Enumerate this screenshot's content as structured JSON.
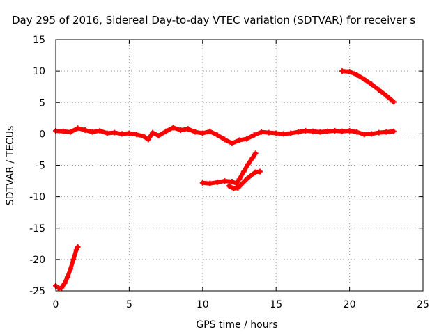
{
  "chart_data": {
    "type": "scatter",
    "title": "Day 295 of 2016, Sidereal Day-to-day VTEC variation (SDTVAR) for receiver s",
    "xlabel": "GPS time / hours",
    "ylabel": "SDTVAR / TECUs",
    "xlim": [
      0,
      25
    ],
    "ylim": [
      -25,
      15
    ],
    "x_ticks": [
      0,
      5,
      10,
      15,
      20,
      25
    ],
    "y_ticks": [
      15,
      10,
      5,
      0,
      -5,
      -10,
      -15,
      -20,
      -25
    ],
    "grid": true,
    "legend": "none",
    "marker_color": "#ff0000",
    "series": [
      {
        "points": [
          [
            0.0,
            0.5
          ],
          [
            0.5,
            0.4
          ],
          [
            1.0,
            0.3
          ],
          [
            1.5,
            0.9
          ],
          [
            2.0,
            0.6
          ],
          [
            2.5,
            0.3
          ],
          [
            3.0,
            0.5
          ],
          [
            3.5,
            0.1
          ],
          [
            4.0,
            0.2
          ],
          [
            4.5,
            0.0
          ],
          [
            5.0,
            0.1
          ],
          [
            5.5,
            -0.1
          ],
          [
            6.0,
            -0.4
          ],
          [
            6.3,
            -0.9
          ],
          [
            6.6,
            0.2
          ],
          [
            7.0,
            -0.3
          ],
          [
            7.5,
            0.4
          ],
          [
            8.0,
            1.0
          ],
          [
            8.5,
            0.6
          ],
          [
            9.0,
            0.8
          ],
          [
            9.5,
            0.3
          ],
          [
            10.0,
            0.1
          ],
          [
            10.5,
            0.4
          ],
          [
            11.0,
            -0.2
          ],
          [
            11.5,
            -0.9
          ],
          [
            12.0,
            -1.5
          ],
          [
            12.5,
            -1.0
          ],
          [
            13.0,
            -0.8
          ],
          [
            13.5,
            -0.2
          ],
          [
            14.0,
            0.3
          ],
          [
            14.5,
            0.2
          ],
          [
            15.0,
            0.1
          ],
          [
            15.5,
            0.0
          ],
          [
            16.0,
            0.1
          ],
          [
            16.5,
            0.3
          ],
          [
            17.0,
            0.5
          ],
          [
            17.5,
            0.4
          ],
          [
            18.0,
            0.3
          ],
          [
            18.5,
            0.4
          ],
          [
            19.0,
            0.5
          ],
          [
            19.5,
            0.4
          ],
          [
            20.0,
            0.5
          ],
          [
            20.5,
            0.3
          ],
          [
            21.0,
            -0.1
          ],
          [
            21.5,
            0.0
          ],
          [
            22.0,
            0.2
          ],
          [
            22.5,
            0.3
          ],
          [
            23.0,
            0.4
          ]
        ]
      },
      {
        "points": [
          [
            0.0,
            -24.2
          ],
          [
            0.2,
            -24.6
          ],
          [
            0.4,
            -24.5
          ],
          [
            0.6,
            -23.8
          ],
          [
            0.8,
            -22.8
          ],
          [
            1.0,
            -21.5
          ],
          [
            1.2,
            -20.0
          ],
          [
            1.4,
            -18.5
          ],
          [
            1.5,
            -18.0
          ]
        ]
      },
      {
        "points": [
          [
            19.5,
            10.0
          ],
          [
            20.0,
            9.9
          ],
          [
            20.5,
            9.4
          ],
          [
            21.0,
            8.7
          ],
          [
            21.5,
            7.9
          ],
          [
            22.0,
            7.0
          ],
          [
            22.5,
            6.1
          ],
          [
            23.0,
            5.1
          ]
        ]
      },
      {
        "points": [
          [
            10.0,
            -7.8
          ],
          [
            10.5,
            -7.9
          ],
          [
            11.0,
            -7.7
          ],
          [
            11.5,
            -7.5
          ],
          [
            12.0,
            -7.6
          ],
          [
            12.3,
            -7.9
          ],
          [
            12.5,
            -7.2
          ],
          [
            12.8,
            -6.0
          ],
          [
            13.1,
            -4.8
          ],
          [
            13.4,
            -3.8
          ],
          [
            13.6,
            -3.1
          ]
        ]
      },
      {
        "points": [
          [
            11.8,
            -8.3
          ],
          [
            12.1,
            -8.7
          ],
          [
            12.4,
            -8.6
          ],
          [
            12.7,
            -7.9
          ],
          [
            13.0,
            -7.2
          ],
          [
            13.3,
            -6.6
          ],
          [
            13.6,
            -6.1
          ],
          [
            13.9,
            -6.0
          ]
        ]
      }
    ]
  }
}
